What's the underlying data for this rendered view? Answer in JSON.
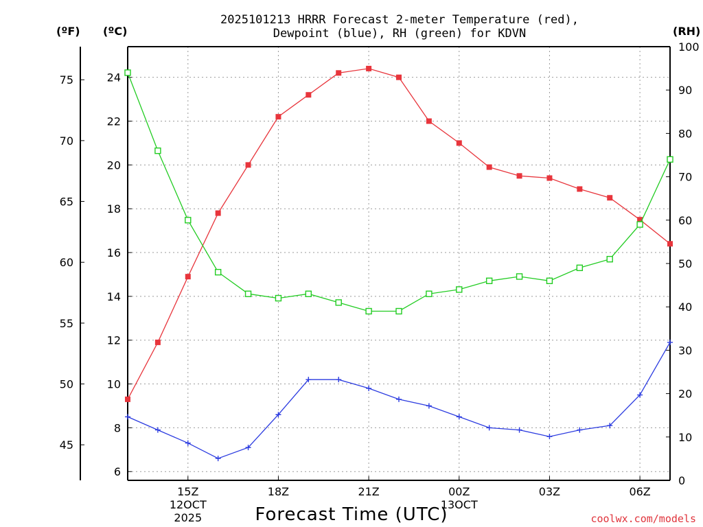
{
  "chart_data": {
    "type": "line",
    "title_line1": "2025101213 HRRR Forecast 2-meter Temperature (red),",
    "title_line2": "Dewpoint (blue), RH (green) for KDVN",
    "xlabel": "Forecast Time (UTC)",
    "credit": "coolwx.com/models",
    "unit_f": "(ºF)",
    "unit_c": "(ºC)",
    "unit_rh": "(RH)",
    "x_hours": [
      13,
      14,
      15,
      16,
      17,
      18,
      19,
      20,
      21,
      22,
      23,
      24,
      25,
      26,
      27,
      28,
      29,
      30,
      31
    ],
    "xlim": [
      13,
      31
    ],
    "x_ticks": [
      {
        "hour": 15,
        "lines": [
          "15Z",
          "12OCT",
          "2025"
        ]
      },
      {
        "hour": 18,
        "lines": [
          "18Z"
        ]
      },
      {
        "hour": 21,
        "lines": [
          "21Z"
        ]
      },
      {
        "hour": 24,
        "lines": [
          "00Z",
          "13OCT"
        ]
      },
      {
        "hour": 27,
        "lines": [
          "03Z"
        ]
      },
      {
        "hour": 30,
        "lines": [
          "06Z"
        ]
      }
    ],
    "c_axis": {
      "lim": [
        5.6,
        25.4
      ],
      "ticks": [
        6,
        8,
        10,
        12,
        14,
        16,
        18,
        20,
        22,
        24
      ]
    },
    "f_axis": {
      "ticks": [
        45,
        50,
        55,
        60,
        65,
        70,
        75
      ]
    },
    "rh_axis": {
      "lim": [
        0,
        100
      ],
      "ticks": [
        0,
        10,
        20,
        30,
        40,
        50,
        60,
        70,
        80,
        90,
        100
      ]
    },
    "series": [
      {
        "name": "Temperature",
        "units": "C",
        "color": "#e8353c",
        "marker": "filled-square",
        "values": [
          9.3,
          11.9,
          14.9,
          17.8,
          20.0,
          22.2,
          23.2,
          24.2,
          24.4,
          24.0,
          22.0,
          21.0,
          19.9,
          19.5,
          19.4,
          18.9,
          18.5,
          17.5,
          16.4
        ]
      },
      {
        "name": "Dewpoint",
        "units": "C",
        "color": "#2b3be0",
        "marker": "plus",
        "values": [
          8.5,
          7.9,
          7.3,
          6.6,
          7.1,
          8.6,
          10.2,
          10.2,
          9.8,
          9.3,
          9.0,
          8.5,
          8.0,
          7.9,
          7.6,
          7.9,
          8.1,
          9.5,
          11.9
        ]
      },
      {
        "name": "RH",
        "units": "%",
        "color": "#22cc22",
        "marker": "open-square",
        "values": [
          94,
          76,
          60,
          48,
          43,
          42,
          43,
          41,
          39,
          39,
          43,
          44,
          46,
          47,
          46,
          49,
          51,
          59,
          74
        ]
      }
    ]
  }
}
